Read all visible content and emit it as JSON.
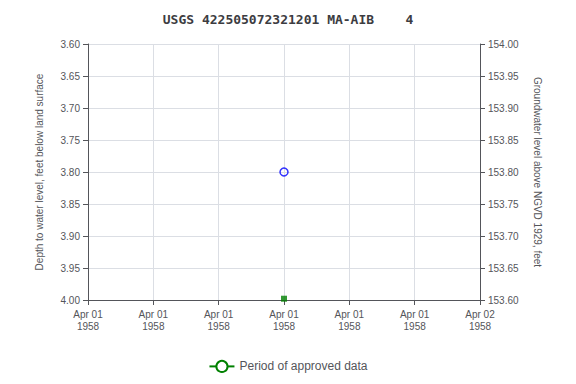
{
  "chart_data": {
    "type": "scatter",
    "title": "USGS 422505072321201 MA-AIB    4",
    "x_label": null,
    "y_label": "Depth to water level, feet below land surface",
    "y2_label": "Groundwater level above NGVD 1929, feet",
    "categories": [
      "Apr 01\n1958",
      "Apr 01\n1958",
      "Apr 01\n1958",
      "Apr 01\n1958",
      "Apr 01\n1958",
      "Apr 01\n1958",
      "Apr 02\n1958"
    ],
    "ylim": [
      4.0,
      3.6
    ],
    "yticks": [
      {
        "value": 3.6,
        "label": "3.60"
      },
      3.65,
      {
        "value": 3.7,
        "label": "3.70"
      },
      3.75,
      {
        "value": 3.8,
        "label": "3.80"
      },
      3.85,
      {
        "value": 3.9,
        "label": "3.90"
      },
      3.95,
      {
        "value": 4.0,
        "label": "4.00"
      }
    ],
    "y2lim": [
      153.6,
      154.0
    ],
    "y2ticks": [
      {
        "value": 153.6,
        "label": "153.60"
      },
      153.65,
      {
        "value": 153.7,
        "label": "153.70"
      },
      153.75,
      {
        "value": 153.8,
        "label": "153.80"
      },
      153.85,
      {
        "value": 153.9,
        "label": "153.90"
      },
      153.95,
      {
        "value": 154.0,
        "label": "154.00"
      }
    ],
    "grid": true,
    "legend": "bottom",
    "series": [
      {
        "type": "scatter",
        "marker": "open_circle",
        "color": "blue",
        "values": [
          null,
          null,
          null,
          3.8,
          null,
          null,
          null
        ]
      },
      {
        "type": "scatter",
        "marker": "square",
        "color": "#008000",
        "values": [
          null,
          null,
          null,
          3.998,
          null,
          null,
          null
        ]
      },
      {
        "type": "line",
        "name": "Period of approved data",
        "color": "#008000",
        "values": [
          null,
          null,
          null,
          null,
          null,
          null,
          null
        ]
      }
    ]
  }
}
